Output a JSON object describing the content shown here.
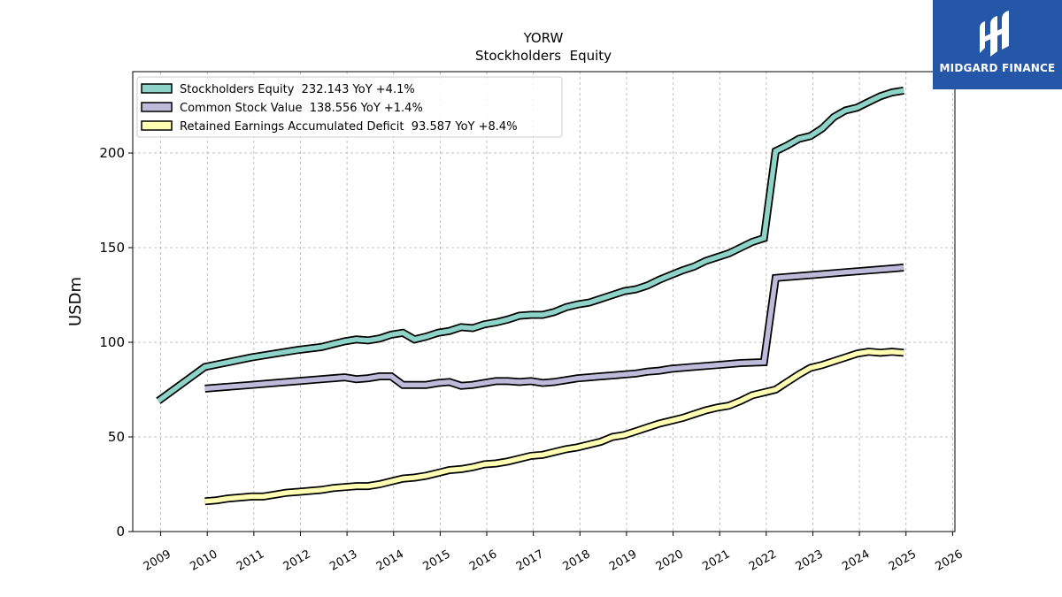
{
  "chart_data": {
    "type": "line",
    "title": "YORW",
    "subtitle": "Stockholders  Equity",
    "xlabel": "",
    "ylabel": "USDm",
    "xlim": [
      2008.4,
      2026.05
    ],
    "ylim": [
      0,
      243
    ],
    "yticks": [
      0,
      50,
      100,
      150,
      200
    ],
    "xticks": [
      "2009",
      "2010",
      "2011",
      "2012",
      "2013",
      "2014",
      "2015",
      "2016",
      "2017",
      "2018",
      "2019",
      "2020",
      "2021",
      "2022",
      "2023",
      "2024",
      "2025",
      "2026"
    ],
    "grid": true,
    "legend_position": "top-left",
    "series": [
      {
        "name": "Stockholders Equity",
        "legend_label": "Stockholders Equity  232.143 YoY +4.1%",
        "color": "#8dd3c7",
        "points": [
          [
            2008.95,
            69
          ],
          [
            2009.95,
            87
          ],
          [
            2010.45,
            89.5
          ],
          [
            2010.95,
            92
          ],
          [
            2011.45,
            94
          ],
          [
            2011.95,
            96
          ],
          [
            2012.45,
            97.5
          ],
          [
            2012.7,
            99
          ],
          [
            2012.95,
            100.5
          ],
          [
            2013.2,
            101.5
          ],
          [
            2013.45,
            101
          ],
          [
            2013.7,
            102
          ],
          [
            2013.95,
            104
          ],
          [
            2014.2,
            105
          ],
          [
            2014.45,
            101.5
          ],
          [
            2014.7,
            103
          ],
          [
            2014.95,
            105
          ],
          [
            2015.2,
            106
          ],
          [
            2015.45,
            108
          ],
          [
            2015.7,
            107.5
          ],
          [
            2015.95,
            109.5
          ],
          [
            2016.2,
            110.5
          ],
          [
            2016.45,
            112
          ],
          [
            2016.7,
            114
          ],
          [
            2016.95,
            114.5
          ],
          [
            2017.2,
            114.5
          ],
          [
            2017.45,
            116
          ],
          [
            2017.7,
            118.5
          ],
          [
            2017.95,
            120
          ],
          [
            2018.2,
            121
          ],
          [
            2018.45,
            123
          ],
          [
            2018.7,
            125
          ],
          [
            2018.95,
            127
          ],
          [
            2019.2,
            128
          ],
          [
            2019.45,
            130
          ],
          [
            2019.7,
            133
          ],
          [
            2019.95,
            135.5
          ],
          [
            2020.2,
            138
          ],
          [
            2020.45,
            140
          ],
          [
            2020.7,
            143
          ],
          [
            2020.95,
            145
          ],
          [
            2021.2,
            147
          ],
          [
            2021.45,
            150
          ],
          [
            2021.7,
            153
          ],
          [
            2021.95,
            155
          ],
          [
            2022.2,
            201
          ],
          [
            2022.45,
            204
          ],
          [
            2022.7,
            207.5
          ],
          [
            2022.95,
            209
          ],
          [
            2023.2,
            213
          ],
          [
            2023.45,
            219
          ],
          [
            2023.7,
            222.5
          ],
          [
            2023.95,
            224
          ],
          [
            2024.2,
            227
          ],
          [
            2024.45,
            230
          ],
          [
            2024.7,
            232
          ],
          [
            2024.95,
            233
          ]
        ]
      },
      {
        "name": "Common Stock Value",
        "legend_label": "Common Stock Value  138.556 YoY +1.4%",
        "color": "#bebada",
        "points": [
          [
            2009.95,
            75.5
          ],
          [
            2010.45,
            76.5
          ],
          [
            2010.95,
            77.5
          ],
          [
            2011.45,
            78.5
          ],
          [
            2011.95,
            79.5
          ],
          [
            2012.45,
            80.5
          ],
          [
            2012.95,
            81.5
          ],
          [
            2013.2,
            80.5
          ],
          [
            2013.45,
            81
          ],
          [
            2013.7,
            82
          ],
          [
            2013.95,
            82
          ],
          [
            2014.2,
            77.5
          ],
          [
            2014.45,
            77.5
          ],
          [
            2014.7,
            77.5
          ],
          [
            2014.95,
            78.5
          ],
          [
            2015.2,
            79
          ],
          [
            2015.45,
            77
          ],
          [
            2015.7,
            77.5
          ],
          [
            2015.95,
            78.5
          ],
          [
            2016.2,
            79.5
          ],
          [
            2016.45,
            79.5
          ],
          [
            2016.7,
            79
          ],
          [
            2016.95,
            79.5
          ],
          [
            2017.2,
            78.5
          ],
          [
            2017.45,
            79
          ],
          [
            2017.7,
            80
          ],
          [
            2017.95,
            81
          ],
          [
            2018.2,
            81.5
          ],
          [
            2018.45,
            82
          ],
          [
            2018.7,
            82.5
          ],
          [
            2018.95,
            83
          ],
          [
            2019.2,
            83.5
          ],
          [
            2019.45,
            84.5
          ],
          [
            2019.7,
            85
          ],
          [
            2019.95,
            86
          ],
          [
            2020.45,
            87
          ],
          [
            2020.95,
            88
          ],
          [
            2021.45,
            89
          ],
          [
            2021.95,
            89.5
          ],
          [
            2022.2,
            134
          ],
          [
            2022.7,
            135
          ],
          [
            2023.2,
            136
          ],
          [
            2023.7,
            137
          ],
          [
            2024.2,
            138
          ],
          [
            2024.7,
            139
          ],
          [
            2024.95,
            139.5
          ]
        ]
      },
      {
        "name": "Retained Earnings Accumulated Deficit",
        "legend_label": "Retained Earnings Accumulated Deficit  93.587 YoY +8.4%",
        "color": "#ffffb3",
        "points": [
          [
            2009.95,
            16
          ],
          [
            2010.2,
            16.5
          ],
          [
            2010.45,
            17.5
          ],
          [
            2010.7,
            18
          ],
          [
            2010.95,
            18.5
          ],
          [
            2011.2,
            18.5
          ],
          [
            2011.45,
            19.5
          ],
          [
            2011.7,
            20.5
          ],
          [
            2011.95,
            21
          ],
          [
            2012.2,
            21.5
          ],
          [
            2012.45,
            22
          ],
          [
            2012.7,
            23
          ],
          [
            2012.95,
            23.5
          ],
          [
            2013.2,
            24
          ],
          [
            2013.45,
            24
          ],
          [
            2013.7,
            25
          ],
          [
            2013.95,
            26.5
          ],
          [
            2014.2,
            28
          ],
          [
            2014.45,
            28.5
          ],
          [
            2014.7,
            29.5
          ],
          [
            2014.95,
            31
          ],
          [
            2015.2,
            32.5
          ],
          [
            2015.45,
            33
          ],
          [
            2015.7,
            34
          ],
          [
            2015.95,
            35.5
          ],
          [
            2016.2,
            36
          ],
          [
            2016.45,
            37
          ],
          [
            2016.7,
            38.5
          ],
          [
            2016.95,
            40
          ],
          [
            2017.2,
            40.5
          ],
          [
            2017.45,
            42
          ],
          [
            2017.7,
            43.5
          ],
          [
            2017.95,
            44.5
          ],
          [
            2018.2,
            46
          ],
          [
            2018.45,
            47.5
          ],
          [
            2018.7,
            50
          ],
          [
            2018.95,
            51
          ],
          [
            2019.2,
            53
          ],
          [
            2019.45,
            55
          ],
          [
            2019.7,
            57
          ],
          [
            2019.95,
            58.5
          ],
          [
            2020.2,
            60
          ],
          [
            2020.45,
            62
          ],
          [
            2020.7,
            64
          ],
          [
            2020.95,
            65.5
          ],
          [
            2021.2,
            66.5
          ],
          [
            2021.45,
            69
          ],
          [
            2021.7,
            72
          ],
          [
            2021.95,
            73.5
          ],
          [
            2022.2,
            75
          ],
          [
            2022.45,
            79
          ],
          [
            2022.7,
            83
          ],
          [
            2022.95,
            86.5
          ],
          [
            2023.2,
            88
          ],
          [
            2023.45,
            90
          ],
          [
            2023.7,
            92
          ],
          [
            2023.95,
            94
          ],
          [
            2024.2,
            95
          ],
          [
            2024.45,
            94.5
          ],
          [
            2024.7,
            95
          ],
          [
            2024.95,
            94.5
          ]
        ]
      }
    ]
  },
  "logo": {
    "text": "MIDGARD FINANCE",
    "icon": "midgard-finance-logo-icon",
    "background": "#2457a8"
  }
}
